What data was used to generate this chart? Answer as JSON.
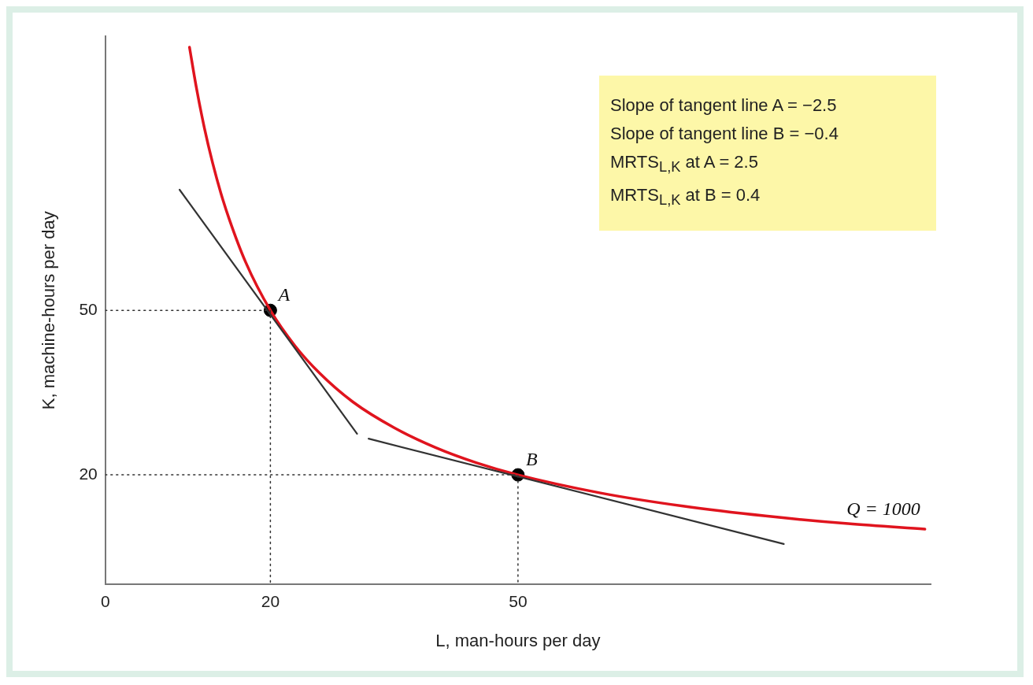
{
  "chart_data": {
    "type": "line",
    "xlabel": "L, man-hours per day",
    "ylabel": "K, machine-hours per day",
    "xlim": [
      0,
      100
    ],
    "ylim": [
      0,
      100
    ],
    "xticks": [
      0,
      20,
      50
    ],
    "yticks": [
      20,
      50
    ],
    "grid": false,
    "legend": false,
    "series": [
      {
        "color": "#333333",
        "line_style": "dotted",
        "x": [
          0,
          20,
          20
        ],
        "values": [
          50,
          50,
          0
        ]
      },
      {
        "color": "#333333",
        "line_style": "dotted",
        "x": [
          0,
          50,
          50
        ],
        "values": [
          20,
          20,
          0
        ]
      },
      {
        "color": "#333333",
        "line_style": "solid",
        "x": [
          9,
          30.5
        ],
        "values": [
          72,
          27.5
        ]
      },
      {
        "color": "#333333",
        "line_style": "solid",
        "x": [
          31.9,
          82.2
        ],
        "values": [
          26.6,
          7.4
        ]
      },
      {
        "color": "#e0141e",
        "line_style": "solid",
        "x": [
          10.2,
          11,
          12,
          13,
          14,
          15,
          17,
          20,
          23,
          26,
          30,
          35,
          40,
          45,
          50,
          60,
          70,
          80,
          90,
          99.3
        ],
        "values": [
          98,
          90.9,
          83.3,
          76.9,
          71.4,
          66.7,
          58.8,
          50,
          43.5,
          38.5,
          33.3,
          28.6,
          25,
          22.2,
          20,
          16.7,
          14.3,
          12.5,
          11.1,
          10.1
        ]
      },
      {
        "type": "scatter",
        "color": "#000000",
        "marker": "circle",
        "x": [
          20,
          50
        ],
        "values": [
          50,
          20
        ]
      }
    ],
    "annotations": [
      {
        "text": "A",
        "x": 20,
        "y": 50
      },
      {
        "text": "B",
        "x": 50,
        "y": 20
      },
      {
        "text": "Q = 1000",
        "x": 99.3,
        "y": 10.1
      },
      "Slope of tangent line A = −2.5",
      "Slope of tangent line B = −0.4",
      "MRTS$_{L,K}$ at A = 2.5",
      "MRTS$_{L,K}$ at B = 0.4"
    ]
  }
}
